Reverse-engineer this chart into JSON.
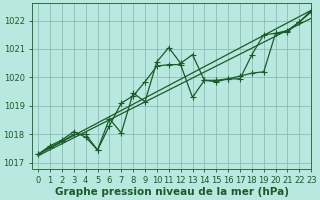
{
  "title": "Graphe pression niveau de la mer (hPa)",
  "bg_color": "#b8e8e0",
  "grid_color": "#8cbcb4",
  "line_color": "#1a5c28",
  "xlim": [
    -0.5,
    23
  ],
  "ylim": [
    1016.8,
    1022.6
  ],
  "yticks": [
    1017,
    1018,
    1019,
    1020,
    1021,
    1022
  ],
  "xticks": [
    0,
    1,
    2,
    3,
    4,
    5,
    6,
    7,
    8,
    9,
    10,
    11,
    12,
    13,
    14,
    15,
    16,
    17,
    18,
    19,
    20,
    21,
    22,
    23
  ],
  "series_jagged1": [
    1017.3,
    1017.6,
    1017.8,
    1018.1,
    1017.9,
    1017.45,
    1018.55,
    1018.05,
    1019.45,
    1019.15,
    1020.55,
    1021.05,
    1020.5,
    1020.8,
    1019.9,
    1019.9,
    1019.95,
    1020.05,
    1020.15,
    1020.2,
    1021.55,
    1021.65,
    1021.95,
    1022.3
  ],
  "series_jagged2": [
    1017.3,
    1017.55,
    1017.75,
    1018.0,
    1018.0,
    1017.45,
    1018.3,
    1019.1,
    1019.35,
    1019.85,
    1020.4,
    1020.45,
    1020.45,
    1019.3,
    1019.9,
    1019.85,
    1019.95,
    1019.95,
    1020.8,
    1021.5,
    1021.55,
    1021.6,
    1021.95,
    1022.35
  ],
  "series_linear1": [
    1017.3,
    1017.52,
    1017.74,
    1017.96,
    1018.18,
    1018.4,
    1018.62,
    1018.84,
    1019.06,
    1019.28,
    1019.5,
    1019.72,
    1019.94,
    1020.16,
    1020.38,
    1020.6,
    1020.82,
    1021.04,
    1021.26,
    1021.48,
    1021.7,
    1021.92,
    1022.14,
    1022.36
  ],
  "series_linear2": [
    1017.25,
    1017.46,
    1017.67,
    1017.88,
    1018.09,
    1018.3,
    1018.51,
    1018.72,
    1018.93,
    1019.14,
    1019.35,
    1019.56,
    1019.77,
    1019.98,
    1020.19,
    1020.4,
    1020.61,
    1020.82,
    1021.03,
    1021.24,
    1021.45,
    1021.66,
    1021.87,
    1022.08
  ],
  "marker": "+",
  "markersize": 4,
  "linewidth": 0.9,
  "tick_fontsize": 6,
  "title_fontsize": 7.5
}
